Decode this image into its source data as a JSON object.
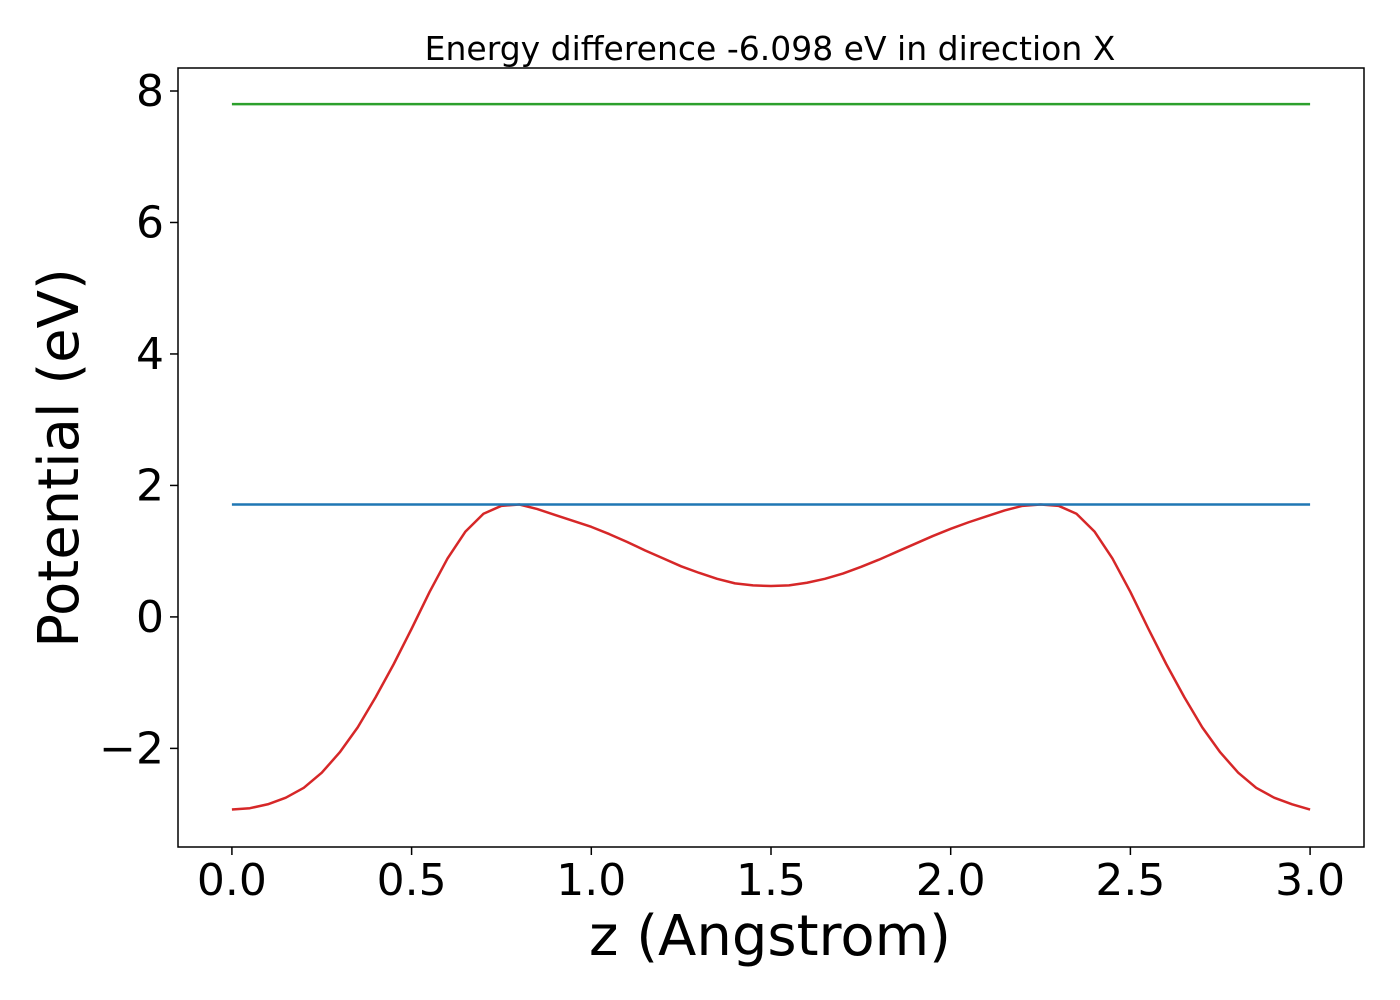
{
  "chart_data": {
    "type": "line",
    "title": "Energy difference -6.098 eV in direction X",
    "xlabel": "z (Angstrom)",
    "ylabel": "Potential (eV)",
    "xlim": [
      -0.15,
      3.15
    ],
    "ylim": [
      -3.5,
      8.35
    ],
    "xticks": [
      0.0,
      0.5,
      1.0,
      1.5,
      2.0,
      2.5,
      3.0
    ],
    "xtick_labels": [
      "0.0",
      "0.5",
      "1.0",
      "1.5",
      "2.0",
      "2.5",
      "3.0"
    ],
    "yticks": [
      -2,
      0,
      2,
      4,
      6,
      8
    ],
    "ytick_labels": [
      "−2",
      "0",
      "2",
      "4",
      "6",
      "8"
    ],
    "grid": false,
    "series": [
      {
        "color": "#d62728",
        "x": [
          0.0,
          0.05,
          0.1,
          0.15,
          0.2,
          0.25,
          0.3,
          0.35,
          0.4,
          0.45,
          0.5,
          0.55,
          0.6,
          0.65,
          0.7,
          0.75,
          0.8,
          0.85,
          0.9,
          0.95,
          1.0,
          1.05,
          1.1,
          1.15,
          1.2,
          1.25,
          1.3,
          1.35,
          1.4,
          1.45,
          1.5,
          1.55,
          1.6,
          1.65,
          1.7,
          1.75,
          1.8,
          1.85,
          1.9,
          1.95,
          2.0,
          2.05,
          2.1,
          2.15,
          2.2,
          2.25,
          2.3,
          2.35,
          2.4,
          2.45,
          2.5,
          2.55,
          2.6,
          2.65,
          2.7,
          2.75,
          2.8,
          2.85,
          2.9,
          2.95,
          3.0
        ],
        "y": [
          -2.93,
          -2.91,
          -2.85,
          -2.75,
          -2.6,
          -2.37,
          -2.06,
          -1.68,
          -1.22,
          -0.72,
          -0.18,
          0.38,
          0.89,
          1.3,
          1.57,
          1.69,
          1.71,
          1.64,
          1.55,
          1.46,
          1.37,
          1.26,
          1.14,
          1.01,
          0.89,
          0.77,
          0.67,
          0.58,
          0.51,
          0.48,
          0.47,
          0.48,
          0.52,
          0.58,
          0.66,
          0.76,
          0.87,
          0.99,
          1.11,
          1.23,
          1.34,
          1.44,
          1.53,
          1.62,
          1.69,
          1.71,
          1.69,
          1.57,
          1.3,
          0.89,
          0.38,
          -0.18,
          -0.72,
          -1.22,
          -1.68,
          -2.06,
          -2.37,
          -2.6,
          -2.75,
          -2.85,
          -2.93
        ]
      },
      {
        "color": "#1f77b4",
        "x": [
          0.0,
          3.0
        ],
        "y": [
          1.71,
          1.71
        ]
      },
      {
        "color": "#2ca02c",
        "x": [
          0.0,
          3.0
        ],
        "y": [
          7.8,
          7.8
        ]
      }
    ]
  }
}
